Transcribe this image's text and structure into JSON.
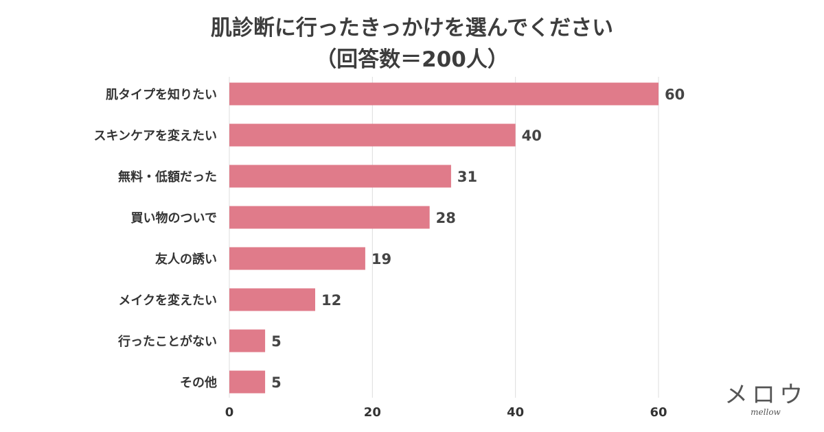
{
  "chart_data": {
    "type": "bar",
    "orientation": "horizontal",
    "title": "肌診断に行ったきっかけを選んでください",
    "subtitle": "（回答数＝200人）",
    "categories": [
      "肌タイプを知りたい",
      "スキンケアを変えたい",
      "無料・低額だった",
      "買い物のついで",
      "友人の誘い",
      "メイクを変えたい",
      "行ったことがない",
      "その他"
    ],
    "values": [
      60,
      40,
      31,
      28,
      19,
      12,
      5,
      5
    ],
    "value_labels": [
      "60",
      "40",
      "31",
      "28",
      "19",
      "12",
      "5",
      "5"
    ],
    "xlim": [
      0,
      60
    ],
    "xticks": [
      0,
      20,
      40,
      60
    ],
    "xtick_labels": [
      "0",
      "20",
      "40",
      "60"
    ],
    "grid": true,
    "bar_color": "#e07b8a",
    "xlabel": "",
    "ylabel": ""
  },
  "logo": {
    "text": "メロウ",
    "subtext": "mellow"
  }
}
